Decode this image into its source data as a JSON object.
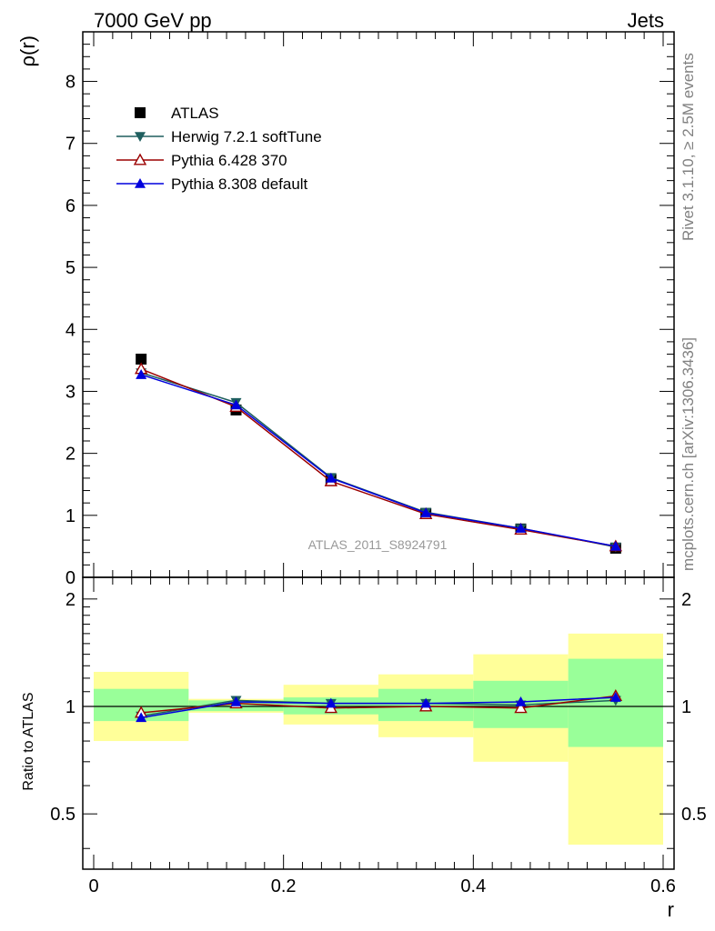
{
  "header": {
    "left": "7000 GeV pp",
    "right": "Jets"
  },
  "side_labels": {
    "rivet": "Rivet 3.1.10, ≥ 2.5M events",
    "mcplots": "mcplots.cern.ch [arXiv:1306.3436]"
  },
  "watermark": "ATLAS_2011_S8924791",
  "chart_data": [
    {
      "type": "scatter",
      "panel": "main",
      "xlabel": "r",
      "ylabel": "ρ(r)",
      "xlim": [
        0,
        0.6
      ],
      "ylim": [
        0,
        8.8
      ],
      "yticks": [
        "0",
        "1",
        "2",
        "3",
        "4",
        "5",
        "6",
        "7",
        "8"
      ],
      "legend_position": "top-left",
      "x": [
        0.05,
        0.15,
        0.25,
        0.35,
        0.45,
        0.55
      ],
      "series": [
        {
          "name": "ATLAS",
          "values": [
            3.52,
            2.7,
            1.58,
            1.03,
            0.78,
            0.47
          ],
          "color": "#000000",
          "marker": "square-filled"
        },
        {
          "name": "Herwig 7.2.1 softTune",
          "values": [
            3.3,
            2.82,
            1.61,
            1.05,
            0.79,
            0.49
          ],
          "color": "#1f5f5f",
          "marker": "triangle-down-filled"
        },
        {
          "name": "Pythia 6.428 370",
          "values": [
            3.36,
            2.75,
            1.55,
            1.02,
            0.77,
            0.5
          ],
          "color": "#9b0000",
          "marker": "triangle-up-open"
        },
        {
          "name": "Pythia 8.308 default",
          "values": [
            3.27,
            2.78,
            1.6,
            1.04,
            0.79,
            0.5
          ],
          "color": "#0000dd",
          "marker": "triangle-up-filled"
        }
      ]
    },
    {
      "type": "scatter",
      "panel": "ratio",
      "xlabel": "r",
      "ylabel": "Ratio to ATLAS",
      "xlim": [
        0,
        0.6
      ],
      "ylim": [
        0.35,
        2.3
      ],
      "xticks": [
        "0",
        "0.2",
        "0.4",
        "0.6"
      ],
      "yticks": [
        "0.5",
        "1",
        "2"
      ],
      "reference_line": 1,
      "uncertainty_bins": [
        {
          "x0": 0.0,
          "x1": 0.1,
          "inner": [
            0.91,
            1.12
          ],
          "outer": [
            0.8,
            1.25
          ]
        },
        {
          "x0": 0.1,
          "x1": 0.2,
          "inner": [
            0.97,
            1.04
          ],
          "outer": [
            0.96,
            1.05
          ]
        },
        {
          "x0": 0.2,
          "x1": 0.3,
          "inner": [
            0.95,
            1.06
          ],
          "outer": [
            0.89,
            1.15
          ]
        },
        {
          "x0": 0.3,
          "x1": 0.4,
          "inner": [
            0.91,
            1.12
          ],
          "outer": [
            0.82,
            1.23
          ]
        },
        {
          "x0": 0.4,
          "x1": 0.5,
          "inner": [
            0.87,
            1.18
          ],
          "outer": [
            0.7,
            1.4
          ]
        },
        {
          "x0": 0.5,
          "x1": 0.6,
          "inner": [
            0.77,
            1.36
          ],
          "outer": [
            0.41,
            1.6
          ]
        }
      ],
      "band_colors": {
        "inner": "#99ff99",
        "outer": "#ffff99"
      },
      "x": [
        0.05,
        0.15,
        0.25,
        0.35,
        0.45,
        0.55
      ],
      "series": [
        {
          "name": "Herwig 7.2.1 softTune",
          "values": [
            0.94,
            1.04,
            1.02,
            1.02,
            1.01,
            1.04
          ],
          "color": "#1f5f5f",
          "marker": "triangle-down-filled"
        },
        {
          "name": "Pythia 6.428 370",
          "values": [
            0.96,
            1.02,
            0.99,
            1.0,
            0.99,
            1.07
          ],
          "color": "#9b0000",
          "marker": "triangle-up-open"
        },
        {
          "name": "Pythia 8.308 default",
          "values": [
            0.93,
            1.03,
            1.02,
            1.02,
            1.03,
            1.06
          ],
          "color": "#0000dd",
          "marker": "triangle-up-filled"
        }
      ]
    }
  ]
}
